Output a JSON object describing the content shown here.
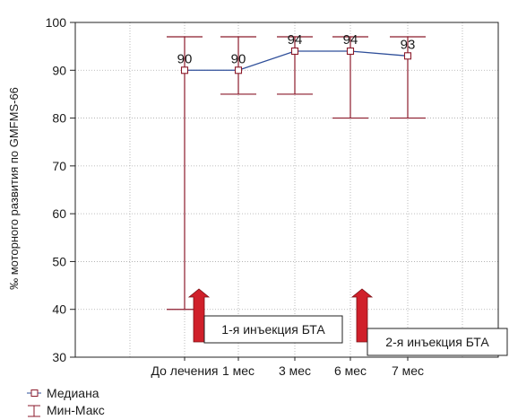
{
  "chart_data": {
    "type": "line",
    "categories": [
      "До лечения",
      "1 мес",
      "3 мес",
      "6 мес",
      "7 мес"
    ],
    "series": [
      {
        "name": "Медиана",
        "values": [
          90,
          90,
          94,
          94,
          93
        ]
      },
      {
        "name": "Мин-Макс",
        "min": [
          40,
          85,
          85,
          80,
          80
        ],
        "max": [
          97,
          97,
          97,
          97,
          97
        ]
      }
    ],
    "data_labels": [
      "90",
      "90",
      "94",
      "94",
      "93"
    ],
    "ylabel": "‰ моторного развития по GMFMS-66",
    "xlabel": "",
    "ylim": [
      30,
      100
    ],
    "yticks": [
      30,
      40,
      50,
      60,
      70,
      80,
      90,
      100
    ],
    "grid": true,
    "legend": "bottom-left",
    "annotations": [
      {
        "text": "1-я инъекция БТА",
        "category": "До лечения",
        "y": 40
      },
      {
        "text": "2-я инъекция БТА",
        "category": "6 мес",
        "y": 40
      }
    ],
    "colors": {
      "median": "#2f4f9a",
      "range": "#8b1a2b",
      "arrow": "#d0202a",
      "grid": "#aaaaaa"
    }
  }
}
